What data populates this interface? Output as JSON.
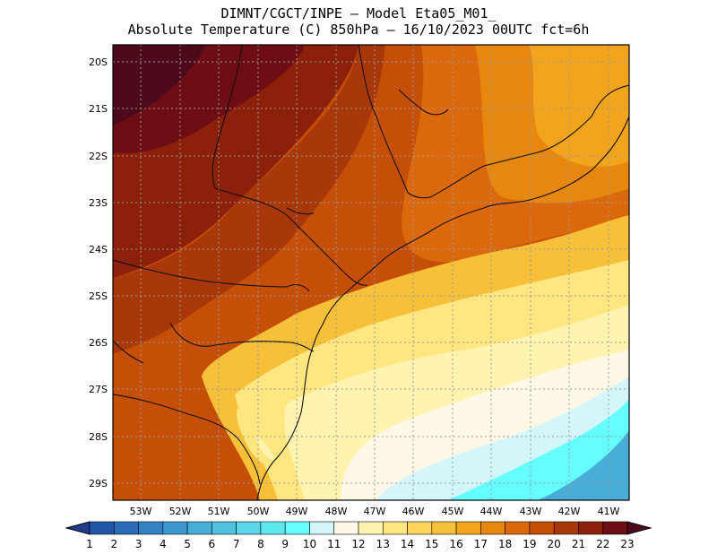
{
  "header": {
    "line1": "DIMNT/CGCT/INPE –  Model Eta05_M01_",
    "line2": "Absolute Temperature (C) 850hPa –  16/10/2023 00UTC fct=6h"
  },
  "map": {
    "lat_labels": [
      "20S",
      "21S",
      "22S",
      "23S",
      "24S",
      "25S",
      "26S",
      "27S",
      "28S",
      "29S"
    ],
    "lon_labels": [
      "53W",
      "52W",
      "51W",
      "50W",
      "49W",
      "48W",
      "47W",
      "46W",
      "45W",
      "44W",
      "43W",
      "42W",
      "41W"
    ]
  },
  "colorbar": {
    "ticks": [
      "1",
      "2",
      "3",
      "4",
      "5",
      "6",
      "7",
      "8",
      "9",
      "10",
      "11",
      "12",
      "13",
      "14",
      "15",
      "16",
      "17",
      "18",
      "19",
      "20",
      "21",
      "22",
      "23"
    ],
    "colors": [
      "#1f3d8c",
      "#2255a6",
      "#2a6cb8",
      "#3282c4",
      "#3d98cf",
      "#48aed8",
      "#52c3df",
      "#5ad6e8",
      "#5de8f0",
      "#66ffff",
      "#d4f6fb",
      "#fff8e6",
      "#fff3b0",
      "#ffe680",
      "#fcd55a",
      "#f7c039",
      "#f2a51c",
      "#e8870e",
      "#db680b",
      "#c64f08",
      "#a8380a",
      "#8c200b",
      "#6e0d14",
      "#4d0a1a"
    ]
  }
}
